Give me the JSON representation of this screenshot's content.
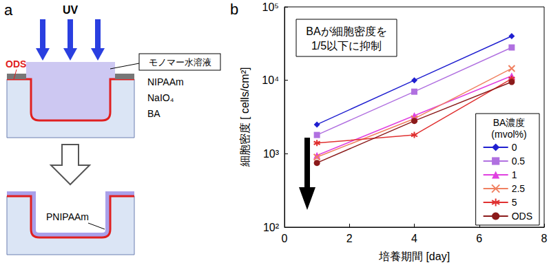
{
  "diagram": {
    "panel": "a",
    "light": "UV",
    "layer": "ODS",
    "solution": "モノマー水溶液",
    "components": [
      "NIPAAm",
      "NaIO₄",
      "BA"
    ],
    "coating": "PNIPAAm"
  },
  "chart_data": {
    "panel": "b",
    "type": "line",
    "x_label": "培養期間 [day]",
    "y_label": "細胞密度 [ cells/cm²]",
    "annotations": [
      "BAが細胞密度を\n1/5以下に抑制"
    ],
    "legend_title": "BA濃度\n(mvol%)",
    "x": [
      1,
      4,
      7
    ],
    "series": [
      {
        "name": "0",
        "color": "#1f1fd0",
        "marker": "diamond",
        "values": [
          2500,
          10000,
          40000
        ]
      },
      {
        "name": "0.5",
        "color": "#b070e0",
        "marker": "square",
        "values": [
          1800,
          7000,
          28000
        ]
      },
      {
        "name": "1",
        "color": "#e040e0",
        "marker": "triangle",
        "values": [
          950,
          3300,
          11500
        ]
      },
      {
        "name": "2.5",
        "color": "#f08060",
        "marker": "x",
        "values": [
          900,
          3000,
          14500
        ]
      },
      {
        "name": "5",
        "color": "#e03030",
        "marker": "asterisk",
        "values": [
          1400,
          1800,
          10500
        ]
      },
      {
        "name": "ODS",
        "color": "#8b1a1a",
        "marker": "circle",
        "values": [
          750,
          2800,
          9500
        ]
      }
    ],
    "xlim": [
      0,
      8
    ],
    "xticks": [
      0,
      2,
      4,
      6,
      8
    ],
    "ylim": [
      100,
      100000
    ],
    "yticks": [
      {
        "value": 100,
        "label": "10²"
      },
      {
        "value": 1000,
        "label": "10³"
      },
      {
        "value": 10000,
        "label": "10⁴"
      },
      {
        "value": 100000,
        "label": "10⁵"
      }
    ],
    "log": "y",
    "grid": false,
    "legend": "lower right"
  }
}
